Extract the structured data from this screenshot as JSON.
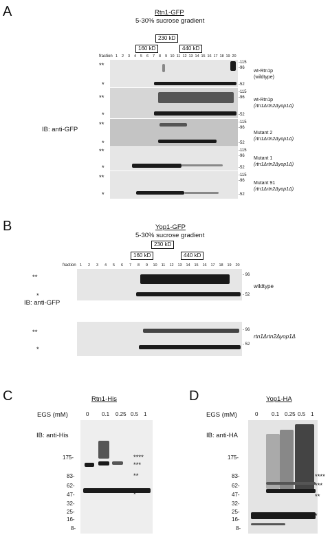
{
  "panels": {
    "A": {
      "letter": "A",
      "title": "Rtn1-GFP",
      "subtitle": "5-30% sucrose gradient",
      "markers": {
        "m230": "230 kD",
        "m160": "160 kD",
        "m440": "440 kD"
      },
      "fraction_label": "fraction",
      "fractions": [
        "1",
        "2",
        "3",
        "4",
        "5",
        "6",
        "7",
        "8",
        "9",
        "10",
        "11",
        "12",
        "13",
        "14",
        "15",
        "16",
        "17",
        "18",
        "19",
        "20"
      ],
      "ib": "IB: anti-GFP",
      "rows": [
        {
          "line1": "wt-Rtn1p",
          "line2": "(wildtype)"
        },
        {
          "line1": "wt-Rtn1p",
          "line2": "(rtn1Δrtn2Δyop1Δ)"
        },
        {
          "line1": "Mutant 2",
          "line2": "(rtn1Δrtn2Δyop1Δ)"
        },
        {
          "line1": "Mutant 1",
          "line2": "(rtn1Δrtn2Δyop1Δ)"
        },
        {
          "line1": "Mutant 91",
          "line2": "(rtn1Δrtn2Δyop1Δ)"
        }
      ],
      "mw": {
        "a": "-115",
        "b": "-96",
        "c": "-52"
      },
      "star2": "**",
      "star1": "*"
    },
    "B": {
      "letter": "B",
      "title": "Yop1-GFP",
      "subtitle": "5-30% sucrose gradient",
      "markers": {
        "m230": "230 kD",
        "m160": "160 kD",
        "m440": "440 kD"
      },
      "fraction_label": "fraction",
      "fractions": [
        "1",
        "2",
        "3",
        "4",
        "5",
        "6",
        "7",
        "8",
        "9",
        "10",
        "11",
        "12",
        "13",
        "14",
        "15",
        "16",
        "17",
        "18",
        "19",
        "20"
      ],
      "ib": "IB: anti-GFP",
      "rows": [
        {
          "line1": "wildtype"
        },
        {
          "line1": "rtn1Δrtn2Δyop1Δ"
        }
      ],
      "mw": {
        "b": "- 96",
        "c": "- 52"
      },
      "star2": "**",
      "star1": "*"
    },
    "C": {
      "letter": "C",
      "title": "Rtn1-His",
      "egs_label": "EGS (mM)",
      "lanes": [
        "0",
        "0.1",
        "0.25",
        "0.5",
        "1"
      ],
      "ib": "IB: anti-His",
      "ladder": [
        "175-",
        "83-",
        "62-",
        "47-",
        "32-",
        "25-",
        "16-",
        "8-"
      ],
      "stars": [
        "****",
        "***",
        "**",
        "*"
      ]
    },
    "D": {
      "letter": "D",
      "title": "Yop1-HA",
      "egs_label": "EGS (mM)",
      "lanes": [
        "0",
        "0.1",
        "0.25",
        "0.5",
        "1"
      ],
      "ib": "IB: anti-HA",
      "ladder": [
        "175-",
        "83-",
        "62-",
        "47-",
        "32-",
        "25-",
        "16-",
        "8-"
      ],
      "stars": [
        "****",
        "***",
        "**",
        "*"
      ]
    }
  }
}
